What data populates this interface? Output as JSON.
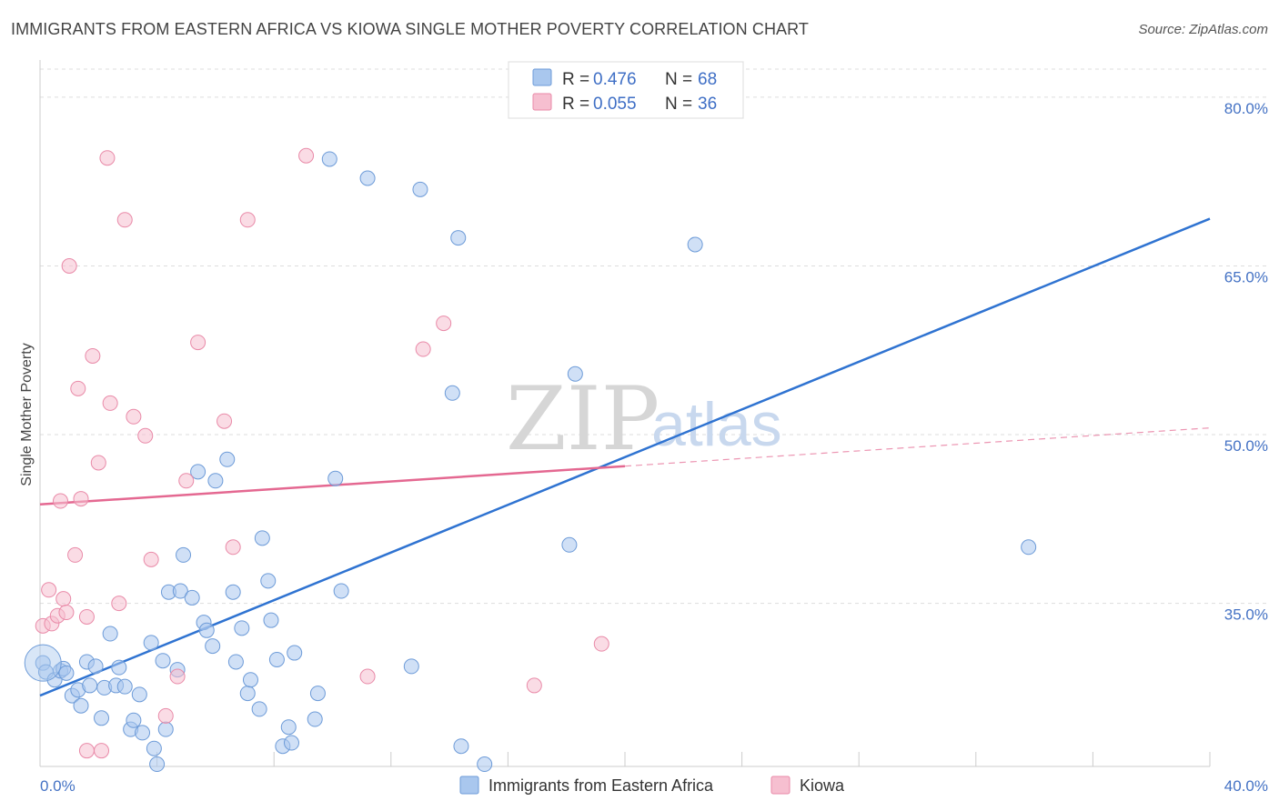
{
  "title": "IMMIGRANTS FROM EASTERN AFRICA VS KIOWA SINGLE MOTHER POVERTY CORRELATION CHART",
  "source": "Source: ZipAtlas.com",
  "watermark": {
    "zip": "ZIP",
    "atlas": "atlas"
  },
  "colors": {
    "blue_fill": "#a9c7ee",
    "blue_stroke": "#6d9bd8",
    "blue_line": "#2f73d1",
    "pink_fill": "#f6bfd0",
    "pink_stroke": "#e98aa8",
    "pink_line": "#e46891",
    "tick_text": "#4472c4",
    "grid": "#dddddd"
  },
  "legend": {
    "rows": [
      {
        "r_label": "R = ",
        "r_value": "0.476",
        "n_label": "N = ",
        "n_value": "68",
        "series": "blue"
      },
      {
        "r_label": "R = ",
        "r_value": "0.055",
        "n_label": "N = ",
        "n_value": "36",
        "series": "pink"
      }
    ]
  },
  "bottom_legend": [
    "Immigrants from Eastern Africa",
    "Kiowa"
  ],
  "chart_data": {
    "type": "scatter",
    "ylabel": "Single Mother Poverty",
    "xlabel": "",
    "xlim": [
      0,
      40
    ],
    "ylim": [
      20.5,
      82.5
    ],
    "x_tick_labels": [
      {
        "value": 0,
        "label": "0.0%"
      },
      {
        "value": 40,
        "label": "40.0%"
      }
    ],
    "y_tick_labels": [
      {
        "value": 35,
        "label": "35.0%"
      },
      {
        "value": 50,
        "label": "50.0%"
      },
      {
        "value": 65,
        "label": "65.0%"
      },
      {
        "value": 80,
        "label": "80.0%"
      }
    ],
    "grid": true,
    "legend_position": "top-center",
    "series": [
      {
        "name": "Immigrants from Eastern Africa",
        "color": "blue",
        "trend": {
          "x": [
            0,
            40
          ],
          "y": [
            26.8,
            69.2
          ],
          "dashed_from": null
        },
        "points": [
          [
            0.1,
            29.7
          ],
          [
            0.2,
            28.9
          ],
          [
            0.5,
            28.2
          ],
          [
            0.7,
            29.0
          ],
          [
            0.8,
            29.2
          ],
          [
            0.9,
            28.8
          ],
          [
            1.1,
            26.8
          ],
          [
            1.3,
            27.3
          ],
          [
            1.4,
            25.9
          ],
          [
            1.6,
            29.8
          ],
          [
            1.7,
            27.7
          ],
          [
            1.9,
            29.4
          ],
          [
            2.1,
            24.8
          ],
          [
            2.2,
            27.5
          ],
          [
            2.4,
            32.3
          ],
          [
            2.6,
            27.7
          ],
          [
            2.7,
            29.3
          ],
          [
            2.9,
            27.6
          ],
          [
            3.1,
            23.8
          ],
          [
            3.2,
            24.6
          ],
          [
            3.4,
            26.9
          ],
          [
            3.5,
            23.5
          ],
          [
            3.8,
            31.5
          ],
          [
            3.9,
            22.1
          ],
          [
            4.0,
            20.7
          ],
          [
            4.2,
            29.9
          ],
          [
            4.3,
            23.8
          ],
          [
            4.4,
            36.0
          ],
          [
            4.7,
            29.1
          ],
          [
            4.8,
            36.1
          ],
          [
            4.9,
            39.3
          ],
          [
            5.2,
            35.5
          ],
          [
            5.4,
            46.7
          ],
          [
            5.6,
            33.3
          ],
          [
            5.7,
            32.6
          ],
          [
            5.9,
            31.2
          ],
          [
            6.0,
            45.9
          ],
          [
            6.4,
            47.8
          ],
          [
            6.6,
            36.0
          ],
          [
            6.7,
            29.8
          ],
          [
            6.9,
            32.8
          ],
          [
            7.1,
            27.0
          ],
          [
            7.2,
            28.2
          ],
          [
            7.5,
            25.6
          ],
          [
            7.6,
            40.8
          ],
          [
            7.8,
            37.0
          ],
          [
            7.9,
            33.5
          ],
          [
            8.1,
            30.0
          ],
          [
            8.3,
            22.3
          ],
          [
            8.5,
            24.0
          ],
          [
            8.6,
            22.6
          ],
          [
            8.7,
            30.6
          ],
          [
            9.4,
            24.7
          ],
          [
            9.5,
            27.0
          ],
          [
            9.9,
            74.5
          ],
          [
            10.1,
            46.1
          ],
          [
            10.3,
            36.1
          ],
          [
            11.2,
            72.8
          ],
          [
            12.7,
            29.4
          ],
          [
            13.0,
            71.8
          ],
          [
            14.1,
            53.7
          ],
          [
            14.3,
            67.5
          ],
          [
            14.4,
            22.3
          ],
          [
            15.2,
            20.7
          ],
          [
            18.1,
            40.2
          ],
          [
            18.3,
            55.4
          ],
          [
            22.4,
            66.9
          ],
          [
            33.8,
            40.0
          ]
        ]
      },
      {
        "name": "Kiowa",
        "color": "pink",
        "trend": {
          "x": [
            0,
            40
          ],
          "y": [
            43.8,
            50.6
          ],
          "dashed_from": 20
        },
        "points": [
          [
            0.1,
            33.0
          ],
          [
            0.3,
            36.2
          ],
          [
            0.4,
            33.2
          ],
          [
            0.6,
            33.9
          ],
          [
            0.7,
            44.1
          ],
          [
            0.8,
            35.4
          ],
          [
            0.9,
            34.2
          ],
          [
            1.0,
            65.0
          ],
          [
            1.2,
            39.3
          ],
          [
            1.3,
            54.1
          ],
          [
            1.4,
            44.3
          ],
          [
            1.6,
            33.8
          ],
          [
            1.6,
            21.9
          ],
          [
            1.8,
            57.0
          ],
          [
            2.0,
            47.5
          ],
          [
            2.1,
            21.9
          ],
          [
            2.3,
            74.6
          ],
          [
            2.4,
            52.8
          ],
          [
            2.7,
            35.0
          ],
          [
            2.9,
            69.1
          ],
          [
            3.2,
            51.6
          ],
          [
            3.6,
            49.9
          ],
          [
            3.8,
            38.9
          ],
          [
            4.3,
            25.0
          ],
          [
            4.7,
            28.5
          ],
          [
            5.0,
            45.9
          ],
          [
            5.4,
            58.2
          ],
          [
            6.3,
            51.2
          ],
          [
            6.6,
            40.0
          ],
          [
            7.1,
            69.1
          ],
          [
            9.1,
            74.8
          ],
          [
            11.2,
            28.5
          ],
          [
            13.1,
            57.6
          ],
          [
            13.8,
            59.9
          ],
          [
            16.9,
            27.7
          ],
          [
            19.2,
            31.4
          ]
        ]
      }
    ]
  }
}
